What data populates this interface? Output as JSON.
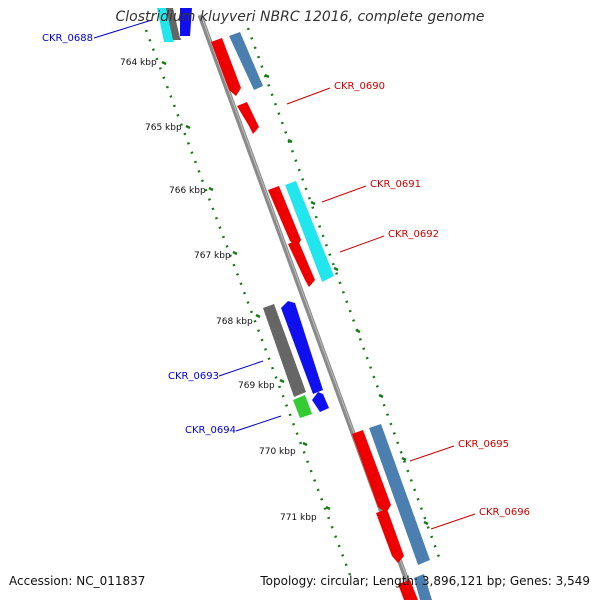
{
  "title": "Clostridium kluyveri NBRC 12016, complete genome",
  "footer": {
    "accession": "Accession: NC_011837",
    "summary": "Topology: circular; Length: 3,896,121 bp; Genes: 3,549"
  },
  "ticks": [
    "764 kbp",
    "765 kbp",
    "766 kbp",
    "767 kbp",
    "768 kbp",
    "769 kbp",
    "770 kbp",
    "771 kbp"
  ],
  "genes": [
    {
      "label": "CKR_0688",
      "color": "#0000cc"
    },
    {
      "label": "CKR_0690",
      "color": "#cc0000"
    },
    {
      "label": "CKR_0691",
      "color": "#cc0000"
    },
    {
      "label": "CKR_0692",
      "color": "#cc0000"
    },
    {
      "label": "CKR_0693",
      "color": "#0000cc"
    },
    {
      "label": "CKR_0694",
      "color": "#0000cc"
    },
    {
      "label": "CKR_0695",
      "color": "#cc0000"
    },
    {
      "label": "CKR_0696",
      "color": "#cc0000"
    }
  ],
  "colors": {
    "backbone": "#8a8a8a",
    "ticks": "#1a7a1a",
    "red": "#ee0000",
    "steelblue": "#4a7fb0",
    "cyan": "#22e6ee",
    "blue": "#1010ee",
    "gray": "#666666",
    "green": "#33cc33"
  }
}
